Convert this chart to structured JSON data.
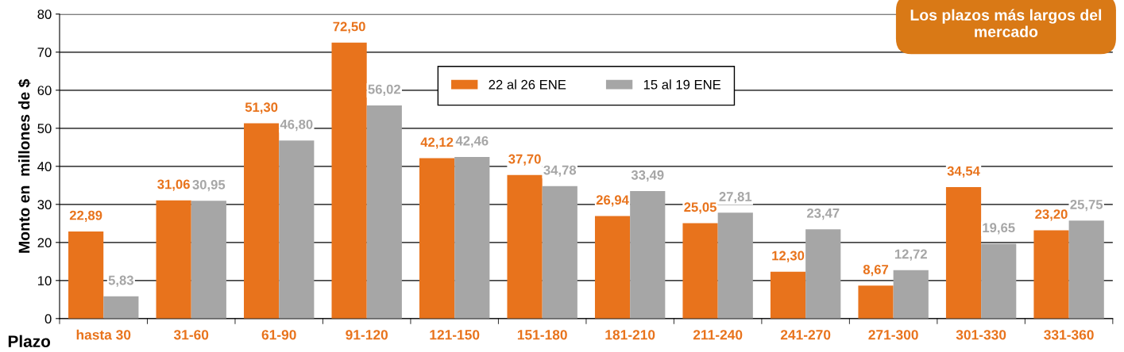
{
  "chart_data": {
    "type": "bar",
    "xlabel": "Plazo",
    "ylabel": "Monto en  millones de $",
    "categories": [
      "hasta 30",
      "31-60",
      "61-90",
      "91-120",
      "121-150",
      "151-180",
      "181-210",
      "211-240",
      "241-270",
      "271-300",
      "301-330",
      "331-360"
    ],
    "series": [
      {
        "name": "22 al 26 ENE",
        "color": "#e8731c",
        "values": [
          22.89,
          31.06,
          51.3,
          72.5,
          42.12,
          37.7,
          26.94,
          25.05,
          12.3,
          8.67,
          34.54,
          23.2
        ],
        "value_labels": [
          "22,89",
          "31,06",
          "51,30",
          "72,50",
          "42,12",
          "37,70",
          "26,94",
          "25,05",
          "12,30",
          "8,67",
          "34,54",
          "23,20"
        ]
      },
      {
        "name": "15 al 19 ENE",
        "color": "#a6a6a6",
        "values": [
          5.83,
          30.95,
          46.8,
          56.02,
          42.46,
          34.78,
          33.49,
          27.81,
          23.47,
          12.72,
          19.65,
          25.75
        ],
        "value_labels": [
          "5,83",
          "30,95",
          "46,80",
          "56,02",
          "42,46",
          "34,78",
          "33,49",
          "27,81",
          "23,47",
          "12,72",
          "19,65",
          "25,75"
        ]
      }
    ],
    "ylim": [
      0,
      80
    ],
    "yticks": [
      0,
      10,
      20,
      30,
      40,
      50,
      60,
      70,
      80
    ],
    "grid": "y",
    "legend": "top",
    "annotations": [
      "Los plazos más largos del mercado"
    ]
  }
}
